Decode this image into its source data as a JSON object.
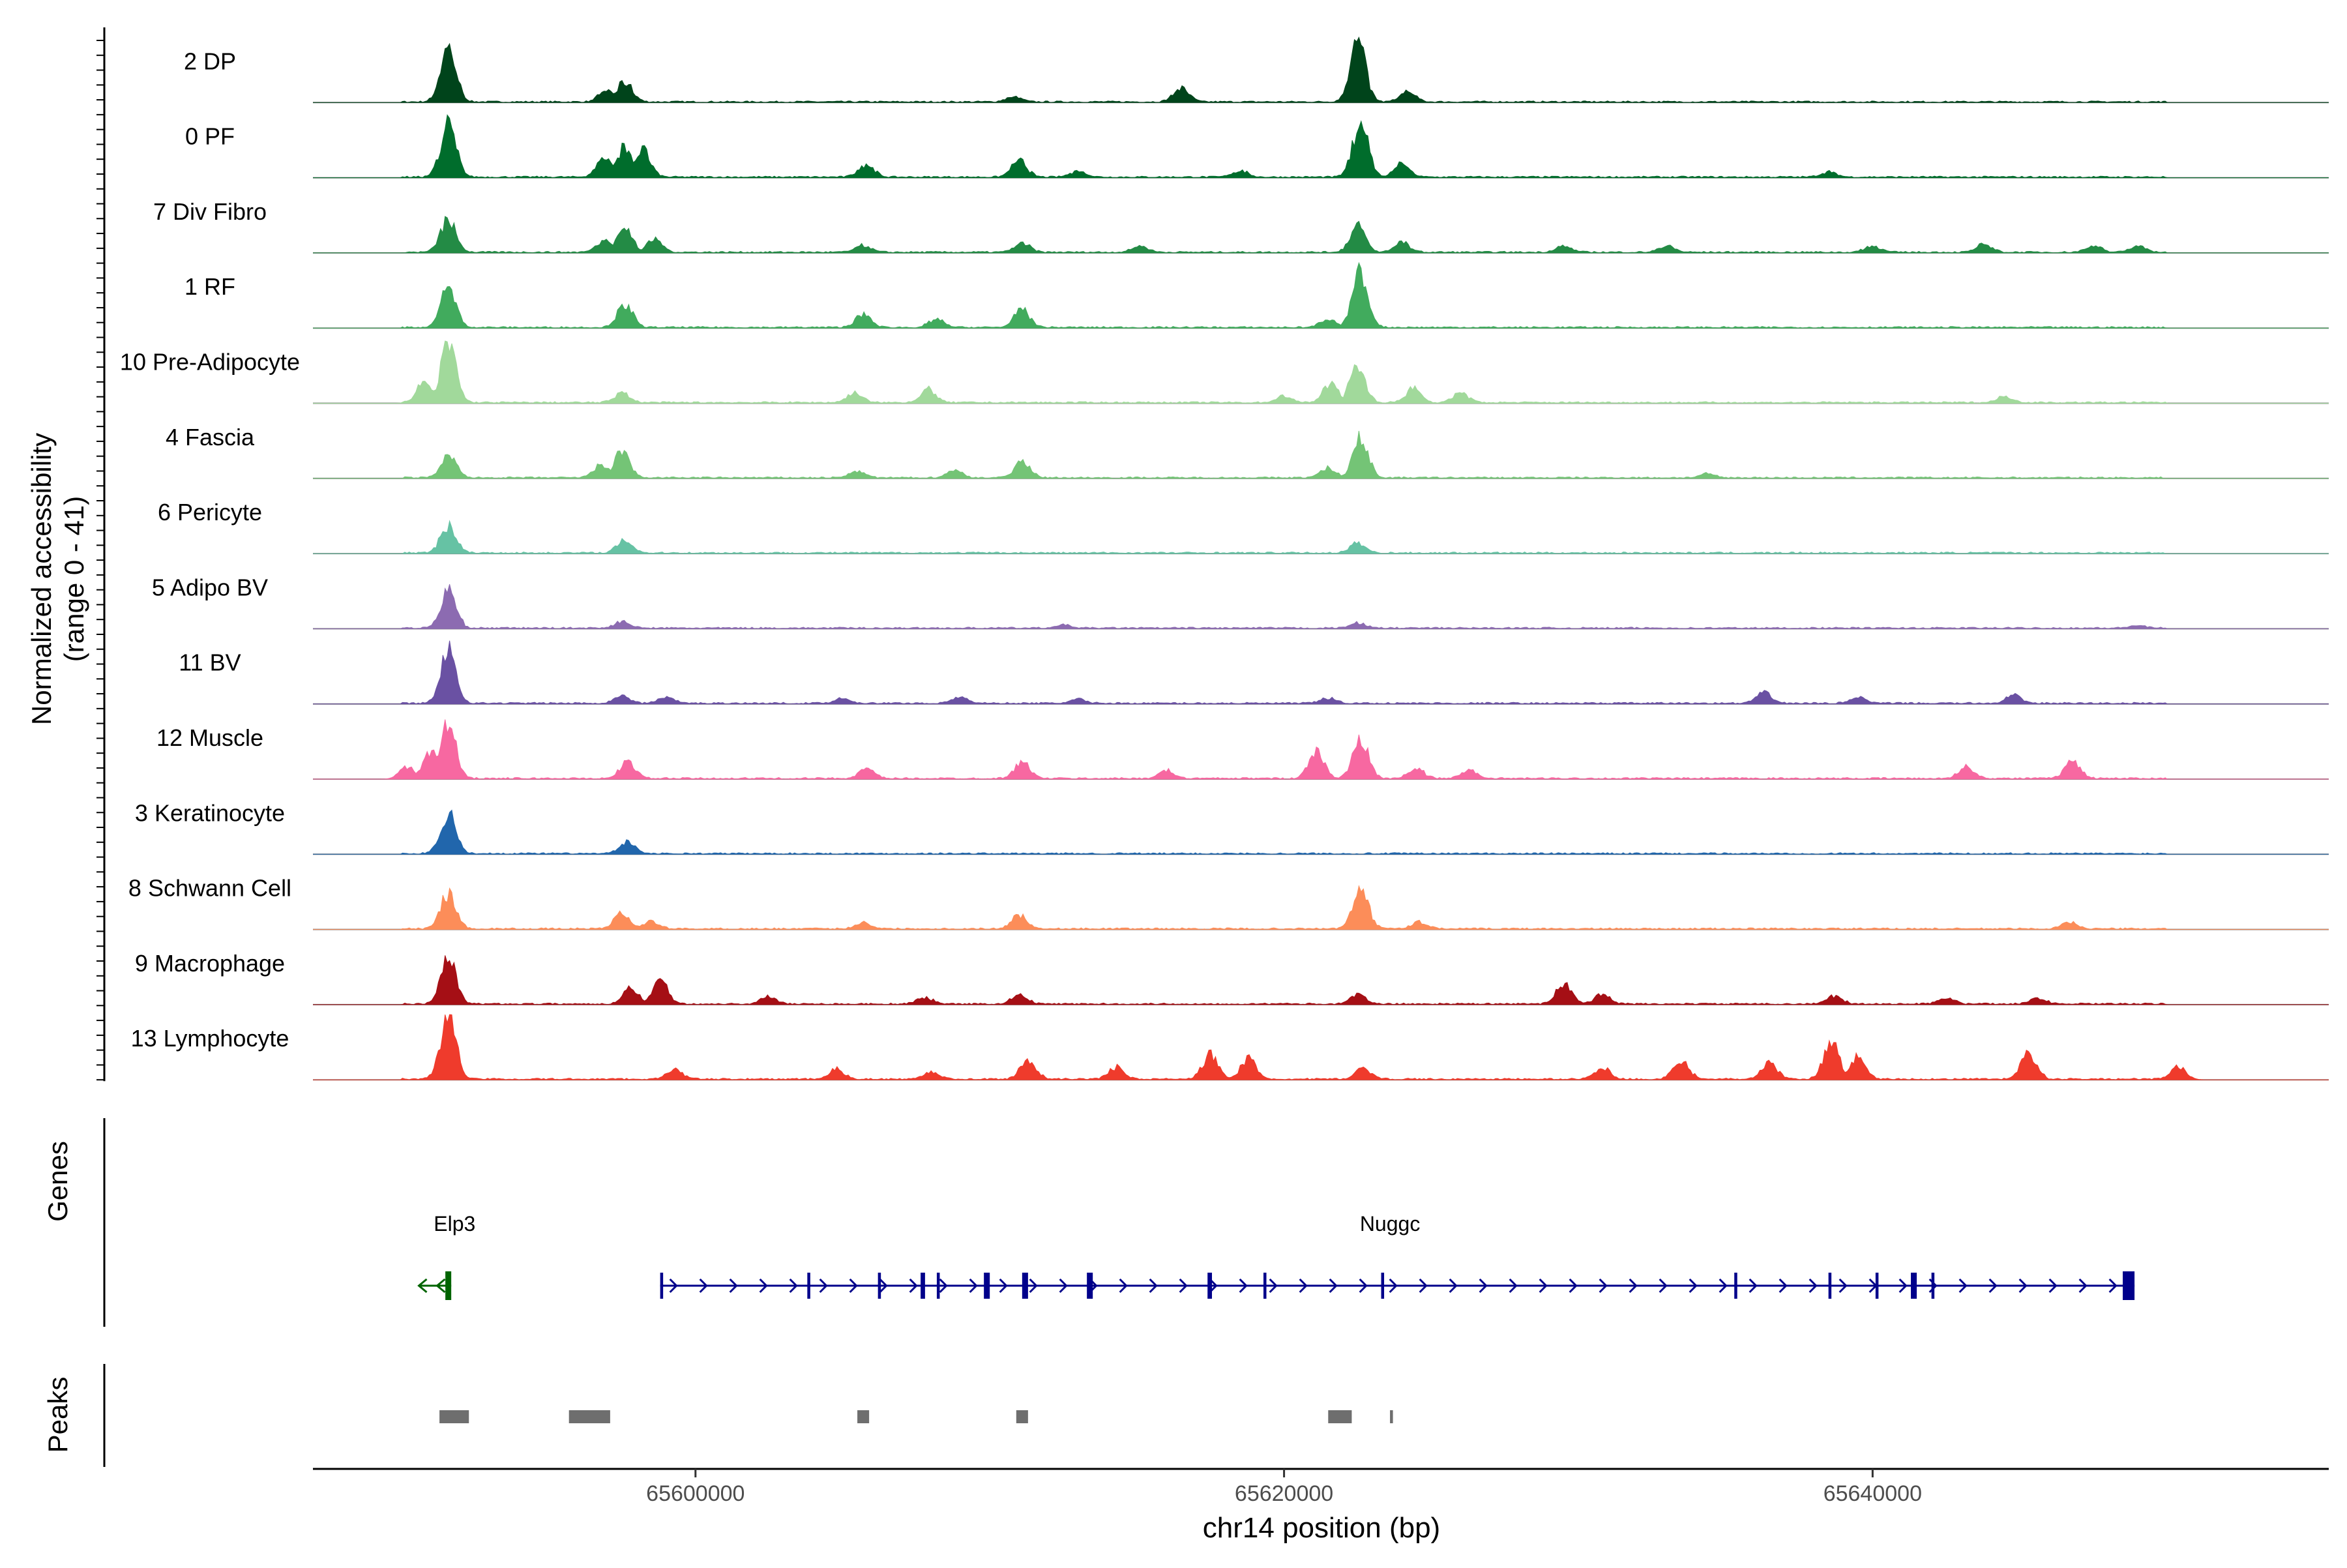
{
  "chart_data": {
    "type": "area",
    "title": "",
    "ylabel_line1": "Normalized accessibility",
    "ylabel_line2": "(range 0 - 41)",
    "xlabel": "chr14 position (bp)",
    "chromosome": "chr14",
    "xlim": [
      65587000,
      65655500
    ],
    "x_ticks": [
      {
        "value": 65600000,
        "label": "65600000"
      },
      {
        "value": 65620000,
        "label": "65620000"
      },
      {
        "value": 65640000,
        "label": "65640000"
      }
    ],
    "y_range": [
      0,
      41
    ],
    "series": [
      {
        "name": "2 DP",
        "color": "#00441b",
        "peaks": [
          [
            65591600,
            0.85
          ],
          [
            65597600,
            0.3
          ],
          [
            65597000,
            0.18
          ],
          [
            65610800,
            0.08
          ],
          [
            65616500,
            0.22
          ],
          [
            65622500,
            0.95
          ],
          [
            65624200,
            0.15
          ]
        ]
      },
      {
        "name": "0 PF",
        "color": "#006d2c",
        "peaks": [
          [
            65591600,
            0.82
          ],
          [
            65597600,
            0.48
          ],
          [
            65598200,
            0.42
          ],
          [
            65596900,
            0.3
          ],
          [
            65605800,
            0.2
          ],
          [
            65611000,
            0.25
          ],
          [
            65613000,
            0.1
          ],
          [
            65618500,
            0.1
          ],
          [
            65622600,
            0.88
          ],
          [
            65624000,
            0.2
          ],
          [
            65638500,
            0.08
          ]
        ]
      },
      {
        "name": "7 Div Fibro",
        "color": "#238b45",
        "peaks": [
          [
            65591600,
            0.5
          ],
          [
            65597600,
            0.38
          ],
          [
            65596900,
            0.2
          ],
          [
            65598600,
            0.2
          ],
          [
            65605700,
            0.1
          ],
          [
            65611100,
            0.14
          ],
          [
            65615100,
            0.1
          ],
          [
            65622500,
            0.4
          ],
          [
            65624000,
            0.15
          ],
          [
            65629500,
            0.1
          ],
          [
            65633000,
            0.1
          ],
          [
            65640000,
            0.1
          ],
          [
            65643800,
            0.12
          ],
          [
            65647500,
            0.1
          ],
          [
            65649000,
            0.1
          ]
        ]
      },
      {
        "name": "1 RF",
        "color": "#41ab5d",
        "peaks": [
          [
            65591600,
            0.62
          ],
          [
            65597600,
            0.35
          ],
          [
            65605700,
            0.2
          ],
          [
            65608200,
            0.12
          ],
          [
            65611100,
            0.28
          ],
          [
            65621500,
            0.14
          ],
          [
            65622600,
            0.85
          ]
        ]
      },
      {
        "name": "10 Pre-Adipocyte",
        "color": "#a1d99b",
        "peaks": [
          [
            65591600,
            0.92
          ],
          [
            65590800,
            0.35
          ],
          [
            65597500,
            0.15
          ],
          [
            65605400,
            0.15
          ],
          [
            65607900,
            0.2
          ],
          [
            65620000,
            0.1
          ],
          [
            65621600,
            0.3
          ],
          [
            65622500,
            0.55
          ],
          [
            65624400,
            0.22
          ],
          [
            65626000,
            0.15
          ],
          [
            65644500,
            0.1
          ]
        ]
      },
      {
        "name": "4 Fascia",
        "color": "#74c476",
        "peaks": [
          [
            65591600,
            0.35
          ],
          [
            65597500,
            0.4
          ],
          [
            65596800,
            0.2
          ],
          [
            65605500,
            0.1
          ],
          [
            65608800,
            0.12
          ],
          [
            65611100,
            0.25
          ],
          [
            65621500,
            0.15
          ],
          [
            65622600,
            0.62
          ],
          [
            65634400,
            0.06
          ]
        ]
      },
      {
        "name": "6 Pericyte",
        "color": "#66c2a4",
        "peaks": [
          [
            65591600,
            0.42
          ],
          [
            65597600,
            0.2
          ],
          [
            65622500,
            0.15
          ]
        ]
      },
      {
        "name": "5 Adipo BV",
        "color": "#8c6bb1",
        "peaks": [
          [
            65591600,
            0.58
          ],
          [
            65597500,
            0.1
          ],
          [
            65612500,
            0.05
          ],
          [
            65622500,
            0.08
          ],
          [
            65649000,
            0.04
          ]
        ]
      },
      {
        "name": "11 BV",
        "color": "#6a51a3",
        "peaks": [
          [
            65591600,
            0.82
          ],
          [
            65597500,
            0.12
          ],
          [
            65599000,
            0.1
          ],
          [
            65605000,
            0.08
          ],
          [
            65609000,
            0.1
          ],
          [
            65613000,
            0.06
          ],
          [
            65621500,
            0.08
          ],
          [
            65636300,
            0.16
          ],
          [
            65639500,
            0.1
          ],
          [
            65644800,
            0.12
          ]
        ]
      },
      {
        "name": "12 Muscle",
        "color": "#f768a1",
        "peaks": [
          [
            65591600,
            0.85
          ],
          [
            65591000,
            0.4
          ],
          [
            65590200,
            0.18
          ],
          [
            65597700,
            0.25
          ],
          [
            65605800,
            0.15
          ],
          [
            65611100,
            0.25
          ],
          [
            65616000,
            0.12
          ],
          [
            65621100,
            0.42
          ],
          [
            65622600,
            0.6
          ],
          [
            65624500,
            0.15
          ],
          [
            65626300,
            0.13
          ],
          [
            65643200,
            0.18
          ],
          [
            65646800,
            0.28
          ]
        ]
      },
      {
        "name": "3 Keratinocyte",
        "color": "#2166ac",
        "peaks": [
          [
            65591600,
            0.62
          ],
          [
            65597700,
            0.18
          ]
        ]
      },
      {
        "name": "8 Schwann Cell",
        "color": "#fc8d59",
        "peaks": [
          [
            65591600,
            0.55
          ],
          [
            65597500,
            0.25
          ],
          [
            65598500,
            0.12
          ],
          [
            65605700,
            0.1
          ],
          [
            65611000,
            0.22
          ],
          [
            65622600,
            0.62
          ],
          [
            65624600,
            0.1
          ],
          [
            65646700,
            0.1
          ]
        ]
      },
      {
        "name": "9 Macrophage",
        "color": "#a50f15",
        "peaks": [
          [
            65591600,
            0.72
          ],
          [
            65598800,
            0.35
          ],
          [
            65597800,
            0.25
          ],
          [
            65602500,
            0.12
          ],
          [
            65607800,
            0.1
          ],
          [
            65611000,
            0.14
          ],
          [
            65622500,
            0.14
          ],
          [
            65629500,
            0.32
          ],
          [
            65630800,
            0.15
          ],
          [
            65638700,
            0.12
          ],
          [
            65642500,
            0.1
          ],
          [
            65645600,
            0.1
          ]
        ]
      },
      {
        "name": "13 Lymphocyte",
        "color": "#ef3b2c",
        "peaks": [
          [
            65591600,
            1.0
          ],
          [
            65599300,
            0.15
          ],
          [
            65604800,
            0.15
          ],
          [
            65608000,
            0.12
          ],
          [
            65611300,
            0.3
          ],
          [
            65614300,
            0.18
          ],
          [
            65617500,
            0.38
          ],
          [
            65618800,
            0.32
          ],
          [
            65622700,
            0.18
          ],
          [
            65630800,
            0.18
          ],
          [
            65633500,
            0.3
          ],
          [
            65636500,
            0.25
          ],
          [
            65638600,
            0.6
          ],
          [
            65639500,
            0.35
          ],
          [
            65645300,
            0.4
          ],
          [
            65650400,
            0.2
          ]
        ]
      }
    ],
    "genes_label": "Genes",
    "genes": [
      {
        "name": "Elp3",
        "color": "#006400",
        "strand": "-",
        "start": 65590600,
        "end": 65591700,
        "exons": [
          [
            65591500,
            65591700
          ]
        ]
      },
      {
        "name": "Nuggc",
        "color": "#00008b",
        "strand": "+",
        "start": 65598800,
        "end": 65648900,
        "exons": [
          [
            65598800,
            65598900
          ],
          [
            65603800,
            65603900
          ],
          [
            65606200,
            65606300
          ],
          [
            65607650,
            65607800
          ],
          [
            65608200,
            65608300
          ],
          [
            65609800,
            65610000
          ],
          [
            65611100,
            65611300
          ],
          [
            65613300,
            65613500
          ],
          [
            65617400,
            65617550
          ],
          [
            65619300,
            65619400
          ],
          [
            65623300,
            65623400
          ],
          [
            65635300,
            65635400
          ],
          [
            65638500,
            65638600
          ],
          [
            65640100,
            65640200
          ],
          [
            65641300,
            65641500
          ],
          [
            65642000,
            65642100
          ],
          [
            65648500,
            65648900
          ]
        ]
      }
    ],
    "peaks_label": "Peaks",
    "peak_regions": [
      [
        65591300,
        65592300
      ],
      [
        65595700,
        65597100
      ],
      [
        65605500,
        65605900
      ],
      [
        65610900,
        65611300
      ],
      [
        65621500,
        65622300
      ],
      [
        65623600,
        65623700
      ]
    ]
  }
}
